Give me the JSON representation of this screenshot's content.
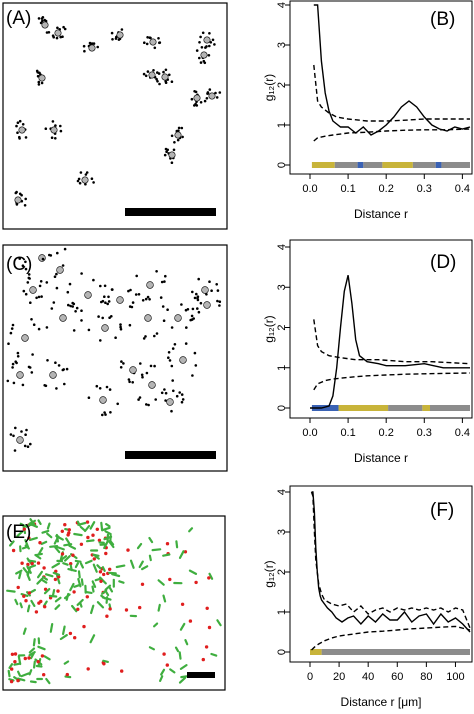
{
  "panels": {
    "A": {
      "label": "(A)"
    },
    "B": {
      "label": "(B)"
    },
    "C": {
      "label": "(C)"
    },
    "D": {
      "label": "(D)"
    },
    "E": {
      "label": "(E)"
    },
    "F": {
      "label": "(F)"
    }
  },
  "colors": {
    "gold": "#c8b43a",
    "gray": "#8c8c8c",
    "blue": "#3a62b4",
    "red": "#e01e1e",
    "green": "#3fae3f",
    "marker": "#b4b4b4"
  },
  "chart_data": [
    {
      "id": "B",
      "type": "line",
      "ylabel": "g₁₂(r)",
      "xlabel": "Distance r",
      "xlim": [
        0,
        0.42
      ],
      "ylim": [
        0,
        4
      ],
      "xticks": [
        "0.0",
        "0.1",
        "0.2",
        "0.3",
        "0.4"
      ],
      "yticks": [
        "0",
        "1",
        "2",
        "3",
        "4"
      ],
      "series": [
        {
          "style": "solid",
          "x": [
            0.01,
            0.02,
            0.03,
            0.04,
            0.05,
            0.06,
            0.08,
            0.1,
            0.12,
            0.14,
            0.16,
            0.18,
            0.2,
            0.22,
            0.24,
            0.26,
            0.28,
            0.3,
            0.32,
            0.34,
            0.36,
            0.38,
            0.4,
            0.42
          ],
          "y": [
            4.0,
            4.0,
            2.6,
            1.8,
            1.35,
            1.1,
            0.95,
            0.95,
            0.8,
            0.95,
            0.75,
            0.85,
            1.0,
            1.2,
            1.45,
            1.6,
            1.45,
            1.2,
            1.0,
            0.9,
            0.85,
            0.95,
            0.9,
            0.95
          ]
        },
        {
          "style": "dashed",
          "x": [
            0.01,
            0.02,
            0.03,
            0.05,
            0.07,
            0.1,
            0.15,
            0.2,
            0.25,
            0.3,
            0.35,
            0.42
          ],
          "y": [
            2.5,
            1.6,
            1.45,
            1.3,
            1.2,
            1.15,
            1.1,
            1.1,
            1.12,
            1.15,
            1.15,
            1.15
          ]
        },
        {
          "style": "dashed",
          "x": [
            0.01,
            0.02,
            0.04,
            0.06,
            0.1,
            0.15,
            0.2,
            0.25,
            0.3,
            0.35,
            0.42
          ],
          "y": [
            0.6,
            0.68,
            0.72,
            0.75,
            0.8,
            0.82,
            0.85,
            0.87,
            0.88,
            0.88,
            0.9
          ]
        }
      ],
      "bar": [
        [
          0.005,
          0.065,
          "gold"
        ],
        [
          0.065,
          0.125,
          "gray"
        ],
        [
          0.125,
          0.14,
          "blue"
        ],
        [
          0.14,
          0.19,
          "gray"
        ],
        [
          0.19,
          0.27,
          "gold"
        ],
        [
          0.27,
          0.33,
          "gray"
        ],
        [
          0.33,
          0.345,
          "blue"
        ],
        [
          0.345,
          0.42,
          "gray"
        ]
      ]
    },
    {
      "id": "D",
      "type": "line",
      "ylabel": "g₁₂(r)",
      "xlabel": "Distance r",
      "xlim": [
        0,
        0.42
      ],
      "ylim": [
        0,
        4
      ],
      "xticks": [
        "0.0",
        "0.1",
        "0.2",
        "0.3",
        "0.4"
      ],
      "yticks": [
        "0",
        "1",
        "2",
        "3",
        "4"
      ],
      "series": [
        {
          "style": "solid",
          "x": [
            0.0,
            0.03,
            0.05,
            0.06,
            0.07,
            0.08,
            0.09,
            0.1,
            0.11,
            0.12,
            0.13,
            0.15,
            0.18,
            0.2,
            0.25,
            0.3,
            0.35,
            0.42
          ],
          "y": [
            0.0,
            0.0,
            0.05,
            0.3,
            1.0,
            2.0,
            2.9,
            3.3,
            2.6,
            1.7,
            1.3,
            1.15,
            1.1,
            1.05,
            1.05,
            1.1,
            1.0,
            1.0
          ]
        },
        {
          "style": "dashed",
          "x": [
            0.01,
            0.02,
            0.03,
            0.05,
            0.08,
            0.12,
            0.18,
            0.25,
            0.32,
            0.42
          ],
          "y": [
            2.2,
            1.55,
            1.4,
            1.3,
            1.25,
            1.2,
            1.2,
            1.15,
            1.15,
            1.1
          ]
        },
        {
          "style": "dashed",
          "x": [
            0.01,
            0.02,
            0.04,
            0.06,
            0.1,
            0.15,
            0.2,
            0.25,
            0.3,
            0.35,
            0.42
          ],
          "y": [
            0.45,
            0.6,
            0.68,
            0.72,
            0.76,
            0.8,
            0.82,
            0.84,
            0.85,
            0.86,
            0.87
          ]
        }
      ],
      "bar": [
        [
          0.005,
          0.075,
          "blue"
        ],
        [
          0.075,
          0.205,
          "gold"
        ],
        [
          0.205,
          0.295,
          "gray"
        ],
        [
          0.295,
          0.315,
          "gold"
        ],
        [
          0.315,
          0.42,
          "gray"
        ]
      ]
    },
    {
      "id": "F",
      "type": "line",
      "ylabel": "g₁₂(r)",
      "xlabel": "Distance r [μm]",
      "xlim": [
        0,
        110
      ],
      "ylim": [
        0,
        4
      ],
      "xticks": [
        "0",
        "20",
        "40",
        "60",
        "80",
        "100"
      ],
      "yticks": [
        "0",
        "1",
        "2",
        "3",
        "4"
      ],
      "series": [
        {
          "style": "solid",
          "x": [
            1,
            2,
            3,
            4,
            5,
            6,
            7,
            8,
            10,
            12,
            15,
            18,
            22,
            26,
            30,
            35,
            40,
            45,
            50,
            55,
            60,
            65,
            70,
            75,
            80,
            85,
            90,
            95,
            100,
            105,
            110
          ],
          "y": [
            4.0,
            4.0,
            3.5,
            2.6,
            2.0,
            1.6,
            1.4,
            1.3,
            1.2,
            1.1,
            1.0,
            0.85,
            0.75,
            0.85,
            0.9,
            0.7,
            0.9,
            0.75,
            0.95,
            0.8,
            0.8,
            1.0,
            0.75,
            0.9,
            0.95,
            0.7,
            0.95,
            0.75,
            0.85,
            0.7,
            0.5
          ]
        },
        {
          "style": "dashed",
          "x": [
            1,
            2,
            3,
            4,
            6,
            8,
            10,
            15,
            20,
            25,
            30,
            35,
            40,
            45,
            50,
            55,
            60,
            65,
            70,
            75,
            80,
            85,
            90,
            95,
            100,
            105,
            110
          ],
          "y": [
            4.0,
            3.9,
            3.0,
            2.3,
            1.7,
            1.45,
            1.3,
            1.2,
            1.15,
            1.2,
            1.0,
            1.15,
            0.95,
            1.05,
            1.1,
            1.0,
            1.1,
            1.05,
            1.1,
            1.05,
            1.1,
            1.05,
            1.1,
            1.0,
            1.1,
            1.05,
            0.6
          ]
        },
        {
          "style": "dashed",
          "x": [
            1,
            3,
            6,
            10,
            15,
            20,
            30,
            40,
            50,
            60,
            70,
            80,
            90,
            100,
            110
          ],
          "y": [
            0.05,
            0.12,
            0.2,
            0.28,
            0.35,
            0.4,
            0.45,
            0.5,
            0.52,
            0.55,
            0.58,
            0.6,
            0.62,
            0.64,
            0.55
          ]
        }
      ],
      "bar": [
        [
          0,
          8,
          "gold"
        ],
        [
          8,
          110,
          "gray"
        ]
      ]
    }
  ]
}
